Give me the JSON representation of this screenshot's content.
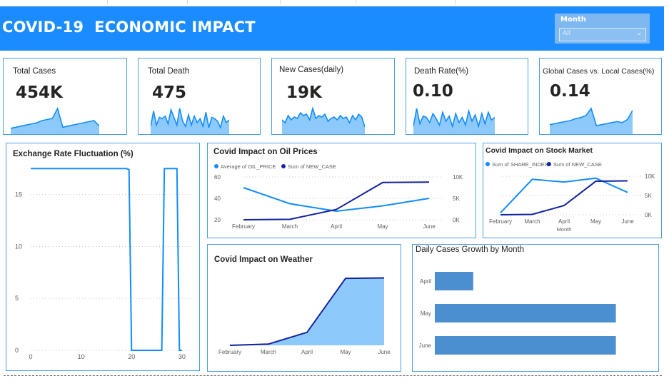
{
  "header": {
    "title": "COVID-19  ECONOMIC IMPACT",
    "background": "#1a8cff",
    "slicer": {
      "label": "Month",
      "value": "All"
    }
  },
  "kpis": [
    {
      "label": "Total Cases",
      "value": "454K",
      "spark": [
        4,
        5,
        6,
        7,
        8,
        9,
        11,
        12,
        13,
        22,
        5,
        6,
        7,
        8,
        9,
        10,
        11,
        6
      ]
    },
    {
      "label": "Total Death",
      "value": "475",
      "spark": [
        5,
        17,
        6,
        12,
        11,
        13,
        7,
        18,
        12,
        6,
        19,
        9,
        5,
        14,
        6,
        13,
        8,
        11,
        5,
        16,
        4,
        12,
        11,
        9,
        4,
        13,
        8,
        10
      ]
    },
    {
      "label": "New Cases(daily)",
      "value": "19K",
      "spark": [
        9,
        7,
        12,
        9,
        11,
        10,
        14,
        12,
        13,
        9,
        17,
        10,
        12,
        11,
        13,
        8,
        10,
        11,
        9,
        12,
        10,
        11,
        7,
        12,
        9,
        13,
        11,
        4
      ]
    },
    {
      "label": "Death Rate(%)",
      "value": "0.10",
      "spark": [
        5,
        19,
        7,
        13,
        12,
        8,
        15,
        11,
        6,
        16,
        9,
        13,
        5,
        15,
        8,
        12,
        6,
        17,
        9,
        14,
        5,
        15,
        7,
        16,
        10,
        12
      ]
    },
    {
      "label": "Global Cases vs. Local Cases(%)",
      "value": "0.14",
      "spark": [
        8,
        9,
        10,
        11,
        12,
        14,
        15,
        17,
        24,
        7,
        8,
        9,
        10,
        11,
        10,
        13,
        22
      ]
    }
  ],
  "colors": {
    "accent": "#118dff",
    "dark": "#12239e",
    "area": "#8ec9fb",
    "bar": "#4b8fd1",
    "border": "#4aa0e6"
  },
  "chart_data": [
    {
      "type": "line",
      "title": "Exchange Rate Fluctuation (%)",
      "x": [
        0,
        19,
        19.5,
        20,
        26,
        26.5,
        27,
        29,
        29.5,
        30
      ],
      "values": [
        17.5,
        17.5,
        17.4,
        0,
        0,
        17.5,
        17.5,
        17.5,
        0,
        0
      ],
      "xticks": [
        "0",
        "10",
        "20",
        "30"
      ],
      "yticks": [
        "0",
        "5",
        "10",
        "15"
      ],
      "xlim": [
        0,
        32
      ],
      "ylim": [
        0,
        18
      ],
      "grid": true
    },
    {
      "type": "line",
      "title": "Covid Impact on Oil Prices",
      "categories": [
        "February",
        "March",
        "April",
        "May",
        "June"
      ],
      "series": [
        {
          "name": "Average of OIL_PRICE",
          "axis": "left",
          "values": [
            50,
            35,
            28,
            33,
            40
          ]
        },
        {
          "name": "Sum of NEW_CASE",
          "axis": "right",
          "values": [
            0,
            100,
            2400,
            8700,
            8800
          ]
        }
      ],
      "yticks_left": [
        "20",
        "40",
        "60"
      ],
      "ylim_left": [
        20,
        60
      ],
      "yticks_right": [
        "0K",
        "5K",
        "10K"
      ],
      "ylim_right": [
        0,
        10000
      ],
      "legend": "top-left"
    },
    {
      "type": "line",
      "title": "Covid Impact on Stock Market",
      "categories": [
        "February",
        "March",
        "April",
        "May",
        "June"
      ],
      "xlabel": "Month",
      "series": [
        {
          "name": "Sum of SHARE_INDEX",
          "axis": "left",
          "values": [
            0.5,
            9.2,
            8.5,
            9.5,
            5.8
          ]
        },
        {
          "name": "Sum of NEW_CASE",
          "axis": "right",
          "values": [
            0,
            100,
            2400,
            8700,
            8800
          ]
        }
      ],
      "yticks_right": [
        "0K",
        "5K",
        "10K"
      ],
      "ylim_right": [
        0,
        10000
      ],
      "ylim_left": [
        0,
        10
      ],
      "legend": "top-left"
    },
    {
      "type": "area",
      "title": "Covid Impact on Weather",
      "categories": [
        "February",
        "March",
        "April",
        "May",
        "June"
      ],
      "values": [
        0,
        0.3,
        3,
        15.5,
        15.6
      ],
      "ylim": [
        0,
        17
      ]
    },
    {
      "type": "bar",
      "orientation": "horizontal",
      "title": "Daily Cases Growth by Month",
      "categories": [
        "April",
        "May",
        "June"
      ],
      "values": [
        1.4,
        6.6,
        6.6
      ],
      "xlim": [
        0,
        7
      ]
    }
  ]
}
